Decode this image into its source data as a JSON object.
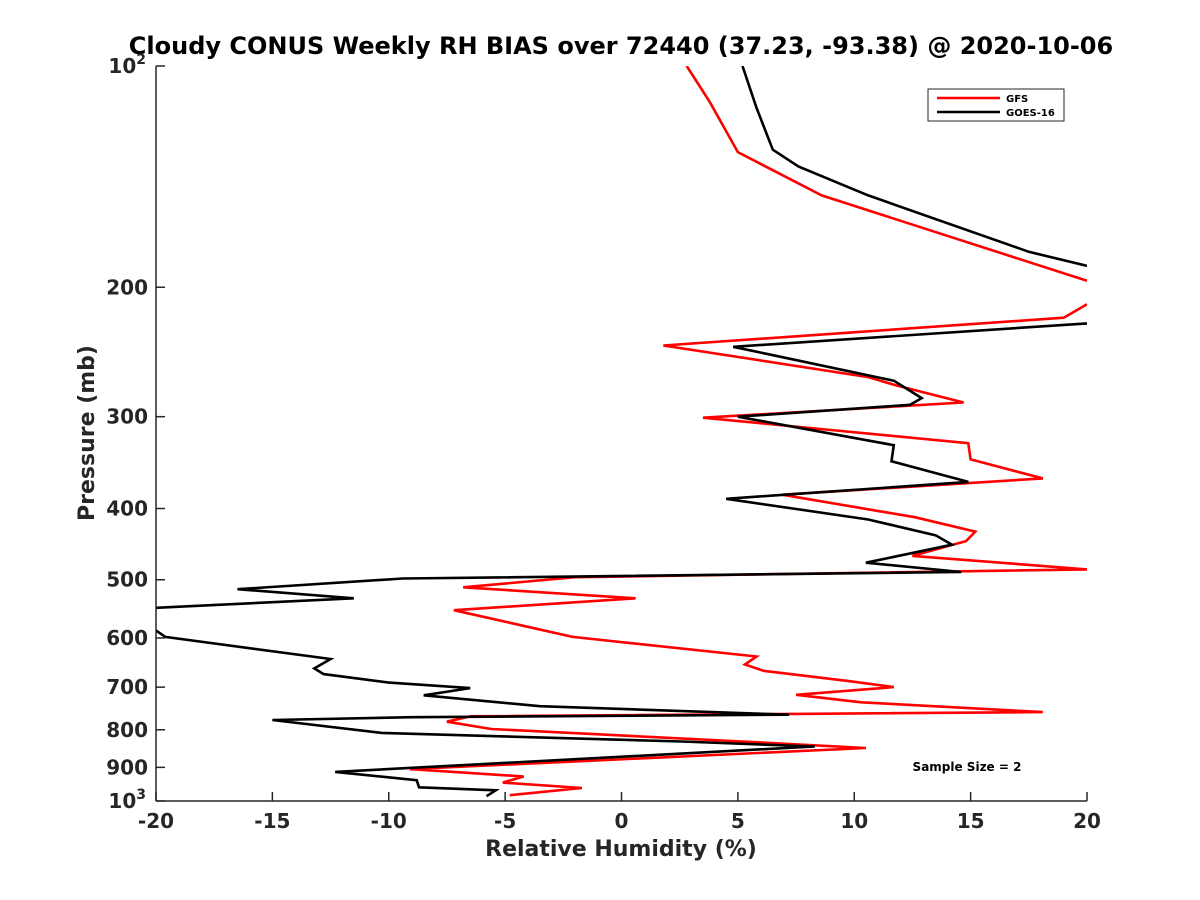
{
  "chart_data": {
    "type": "line",
    "title": "Cloudy CONUS Weekly RH BIAS over 72440 (37.23, -93.38) @ 2020-10-06",
    "xlabel": "Relative Humidity (%)",
    "ylabel": "Pressure (mb)",
    "xlim": [
      -20,
      20
    ],
    "ylim": [
      100,
      1000
    ],
    "y_scale": "log",
    "y_reversed": true,
    "grid": false,
    "legend": "top-right",
    "x_ticks": [
      {
        "value": -20,
        "label": "-20"
      },
      {
        "value": -15,
        "label": "-15"
      },
      {
        "value": -10,
        "label": "-10"
      },
      {
        "value": -5,
        "label": "-5"
      },
      {
        "value": 0,
        "label": "0"
      },
      {
        "value": 5,
        "label": "5"
      },
      {
        "value": 10,
        "label": "10"
      },
      {
        "value": 15,
        "label": "15"
      },
      {
        "value": 20,
        "label": "20"
      }
    ],
    "y_ticks": [
      {
        "value": 100,
        "label": "10",
        "sup": "2"
      },
      {
        "value": 200,
        "label": "200"
      },
      {
        "value": 300,
        "label": "300"
      },
      {
        "value": 400,
        "label": "400"
      },
      {
        "value": 500,
        "label": "500"
      },
      {
        "value": 600,
        "label": "600"
      },
      {
        "value": 700,
        "label": "700"
      },
      {
        "value": 800,
        "label": "800"
      },
      {
        "value": 900,
        "label": "900"
      },
      {
        "value": 1000,
        "label": "10",
        "sup": "3"
      }
    ],
    "series": [
      {
        "name": "GFS",
        "color": "#ff0000",
        "points": [
          [
            2.8,
            100
          ],
          [
            3.8,
            112
          ],
          [
            5.0,
            131
          ],
          [
            8.6,
            150
          ],
          [
            20.0,
            196
          ],
          null,
          [
            20.0,
            211
          ],
          [
            19.0,
            220
          ],
          [
            1.8,
            240
          ],
          [
            10.6,
            265
          ],
          [
            11.8,
            272
          ],
          [
            14.7,
            287
          ],
          [
            3.5,
            301
          ],
          [
            14.9,
            326
          ],
          [
            15.0,
            343
          ],
          [
            18.1,
            364
          ],
          [
            6.9,
            383
          ],
          [
            12.6,
            411
          ],
          [
            15.2,
            430
          ],
          [
            14.8,
            443
          ],
          [
            12.5,
            464
          ],
          [
            20.0,
            484
          ],
          [
            -2.0,
            496
          ],
          [
            -6.8,
            512
          ],
          [
            0.6,
            530
          ],
          [
            -7.2,
            550
          ],
          [
            -2.1,
            598
          ],
          [
            5.8,
            636
          ],
          [
            5.3,
            652
          ],
          [
            6.1,
            665
          ],
          [
            9.8,
            687
          ],
          [
            11.7,
            700
          ],
          [
            7.5,
            717
          ],
          [
            10.3,
            734
          ],
          [
            18.1,
            757
          ],
          [
            -6.5,
            767
          ],
          [
            -7.5,
            780
          ],
          [
            -5.6,
            798
          ],
          [
            5.2,
            830
          ],
          [
            10.5,
            847
          ],
          [
            -9.1,
            905
          ],
          [
            -4.2,
            926
          ],
          [
            -5.1,
            944
          ],
          [
            -1.7,
            960
          ],
          [
            -4.8,
            982
          ]
        ]
      },
      {
        "name": "GOES-16",
        "color": "#000000",
        "points": [
          [
            5.2,
            100
          ],
          [
            5.8,
            114
          ],
          [
            6.5,
            130
          ],
          [
            7.6,
            137
          ],
          [
            10.6,
            150
          ],
          [
            17.5,
            179
          ],
          [
            20.0,
            187
          ],
          null,
          [
            20.0,
            224
          ],
          [
            4.8,
            241
          ],
          [
            11.7,
            268
          ],
          [
            12.9,
            283
          ],
          [
            12.4,
            289
          ],
          [
            5.0,
            300
          ],
          [
            11.7,
            328
          ],
          [
            11.6,
            345
          ],
          [
            14.9,
            368
          ],
          [
            4.5,
            388
          ],
          [
            10.6,
            414
          ],
          [
            13.5,
            435
          ],
          [
            14.2,
            448
          ],
          [
            10.5,
            474
          ],
          [
            14.6,
            488
          ],
          [
            -9.4,
            498
          ],
          [
            -16.5,
            515
          ],
          [
            -11.5,
            530
          ],
          [
            -20.0,
            546
          ],
          null,
          [
            -20.0,
            586
          ],
          [
            -19.6,
            598
          ],
          [
            -12.5,
            641
          ],
          [
            -13.2,
            660
          ],
          [
            -12.8,
            672
          ],
          [
            -10.0,
            690
          ],
          [
            -6.5,
            702
          ],
          [
            -8.5,
            718
          ],
          [
            -3.5,
            743
          ],
          [
            7.2,
            763
          ],
          [
            -9.0,
            769
          ],
          [
            -15.0,
            776
          ],
          [
            -10.3,
            808
          ],
          [
            2.6,
            830
          ],
          [
            8.3,
            843
          ],
          [
            -12.3,
            913
          ],
          [
            -8.8,
            937
          ],
          [
            -8.7,
            958
          ],
          [
            -5.4,
            967
          ],
          [
            -5.8,
            985
          ]
        ]
      }
    ],
    "annotation": "Sample Size = 2"
  }
}
